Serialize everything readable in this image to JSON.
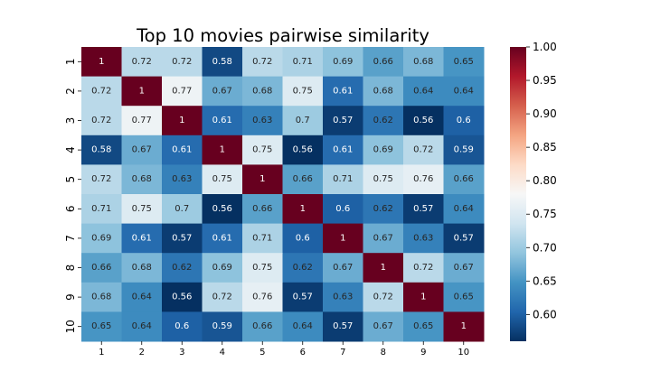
{
  "chart_data": {
    "type": "heatmap",
    "title": "Top 10 movies pairwise similarity",
    "xlabel": "",
    "ylabel": "",
    "x_categories": [
      "1",
      "2",
      "3",
      "4",
      "5",
      "6",
      "7",
      "8",
      "9",
      "10"
    ],
    "y_categories": [
      "1",
      "2",
      "3",
      "4",
      "5",
      "6",
      "7",
      "8",
      "9",
      "10"
    ],
    "values": [
      [
        1,
        0.72,
        0.72,
        0.58,
        0.72,
        0.71,
        0.69,
        0.66,
        0.68,
        0.65
      ],
      [
        0.72,
        1,
        0.77,
        0.67,
        0.68,
        0.75,
        0.61,
        0.68,
        0.64,
        0.64
      ],
      [
        0.72,
        0.77,
        1,
        0.61,
        0.63,
        0.7,
        0.57,
        0.62,
        0.56,
        0.6
      ],
      [
        0.58,
        0.67,
        0.61,
        1,
        0.75,
        0.56,
        0.61,
        0.69,
        0.72,
        0.59
      ],
      [
        0.72,
        0.68,
        0.63,
        0.75,
        1,
        0.66,
        0.71,
        0.75,
        0.76,
        0.66
      ],
      [
        0.71,
        0.75,
        0.7,
        0.56,
        0.66,
        1,
        0.6,
        0.62,
        0.57,
        0.64
      ],
      [
        0.69,
        0.61,
        0.57,
        0.61,
        0.71,
        0.6,
        1,
        0.67,
        0.63,
        0.57
      ],
      [
        0.66,
        0.68,
        0.62,
        0.69,
        0.75,
        0.62,
        0.67,
        1,
        0.72,
        0.67
      ],
      [
        0.68,
        0.64,
        0.56,
        0.72,
        0.76,
        0.57,
        0.63,
        0.72,
        1,
        0.65
      ],
      [
        0.65,
        0.64,
        0.6,
        0.59,
        0.66,
        0.64,
        0.57,
        0.67,
        0.65,
        1
      ]
    ],
    "colormap": "RdBu_r",
    "vmin": 0.56,
    "vmax": 1.0,
    "colorbar_ticks": [
      "0.60",
      "0.65",
      "0.70",
      "0.75",
      "0.80",
      "0.85",
      "0.90",
      "0.95",
      "1.00"
    ],
    "colors": {
      "low": "#053061",
      "mid": "#f7f7f7",
      "high": "#67001f"
    },
    "grid": false
  }
}
